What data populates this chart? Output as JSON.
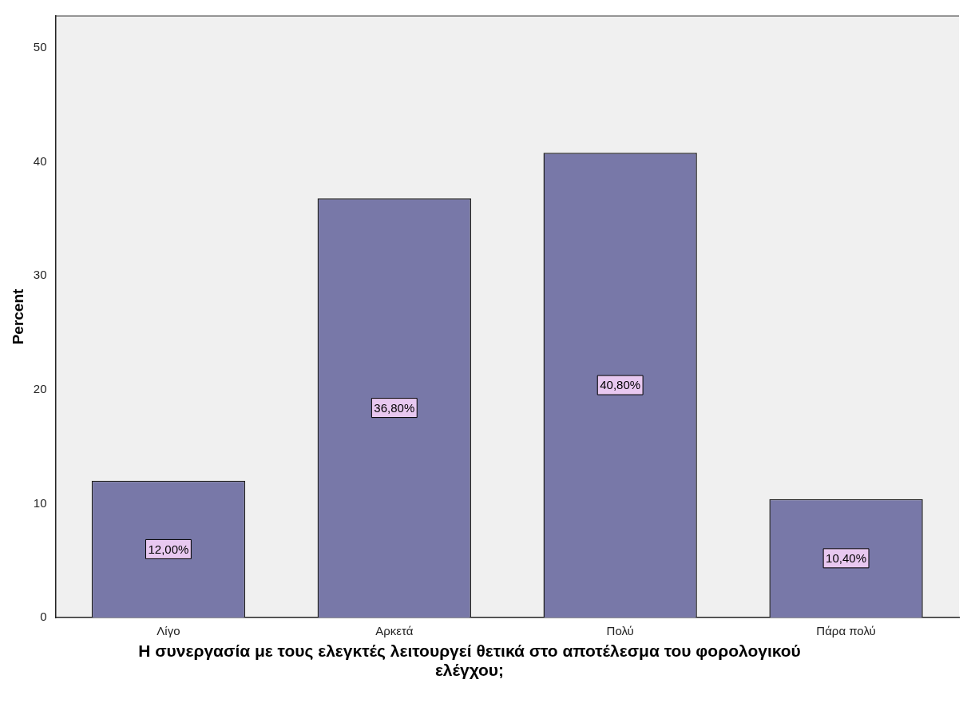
{
  "chart_data": {
    "type": "bar",
    "xlabel": "Η συνεργασία με τους ελεγκτές λειτουργεί θετικά στο αποτέλεσμα του φορολογικού ελέγχου;",
    "ylabel": "Percent",
    "categories": [
      "Λίγο",
      "Αρκετά",
      "Πολύ",
      "Πάρα πολύ"
    ],
    "values": [
      12,
      36.8,
      40.8,
      10.4
    ],
    "value_labels": [
      "12,00%",
      "36,80%",
      "40,80%",
      "10,40%"
    ],
    "color": "#7878a8",
    "ylim": [
      0,
      52.8
    ],
    "yticks": [
      0,
      10,
      20,
      30,
      40,
      50
    ],
    "grid": false,
    "legend": false
  }
}
